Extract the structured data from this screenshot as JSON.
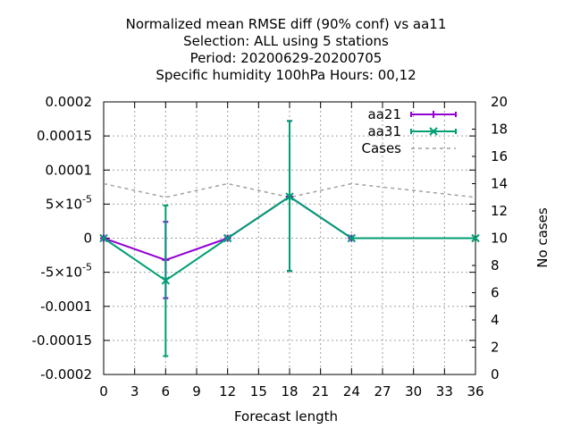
{
  "chart_data": {
    "type": "line",
    "title_lines": [
      "Normalized mean RMSE diff (90% conf) vs aa11",
      "Selection: ALL using     5 stations",
      "Period: 20200629-20200705",
      "Specific humidity 100hPa   Hours:  00,12"
    ],
    "xlabel": "Forecast length",
    "ylabel_right": "No cases",
    "xlim": [
      0,
      36
    ],
    "ylim": [
      -0.0002,
      0.0002
    ],
    "y2lim": [
      0,
      20
    ],
    "x_ticks": [
      "0",
      "3",
      "6",
      "9",
      "12",
      "15",
      "18",
      "21",
      "24",
      "27",
      "30",
      "33",
      "36"
    ],
    "y_ticks": [
      "-0.0002",
      "-0.00015",
      "-0.0001",
      "-5x10^-5",
      "0",
      "5x10^-5",
      "0.0001",
      "0.00015",
      "0.0002"
    ],
    "y_tick_values": [
      -0.0002,
      -0.00015,
      -0.0001,
      -5e-05,
      0,
      5e-05,
      0.0001,
      0.00015,
      0.0002
    ],
    "y2_ticks": [
      "0",
      "2",
      "4",
      "6",
      "8",
      "10",
      "12",
      "14",
      "16",
      "18",
      "20"
    ],
    "grid": true,
    "legend_position": "top-right",
    "series": [
      {
        "name": "aa21",
        "color": "#9400d3",
        "marker": "plus",
        "x": [
          0,
          6,
          12,
          18,
          24
        ],
        "y": [
          0,
          -3.2e-05,
          0,
          6.1e-05,
          0
        ],
        "err_low": [
          0,
          -8.8e-05,
          0,
          -4.8e-05,
          0
        ],
        "err_high": [
          0,
          2.4e-05,
          0,
          0.000172,
          0
        ]
      },
      {
        "name": "aa31",
        "color": "#009e73",
        "marker": "x",
        "x": [
          0,
          6,
          12,
          18,
          24,
          36
        ],
        "y": [
          0,
          -6.2e-05,
          0,
          6.1e-05,
          0,
          0
        ],
        "err_low": [
          0,
          -0.000173,
          0,
          -4.8e-05,
          0,
          0
        ],
        "err_high": [
          0,
          4.8e-05,
          0,
          0.000172,
          0,
          0
        ]
      }
    ],
    "cases": {
      "name": "Cases",
      "color": "#a0a0a0",
      "x": [
        0,
        6,
        12,
        18,
        24,
        30,
        36
      ],
      "y": [
        14,
        13,
        14,
        13,
        14,
        13.5,
        13
      ]
    }
  }
}
